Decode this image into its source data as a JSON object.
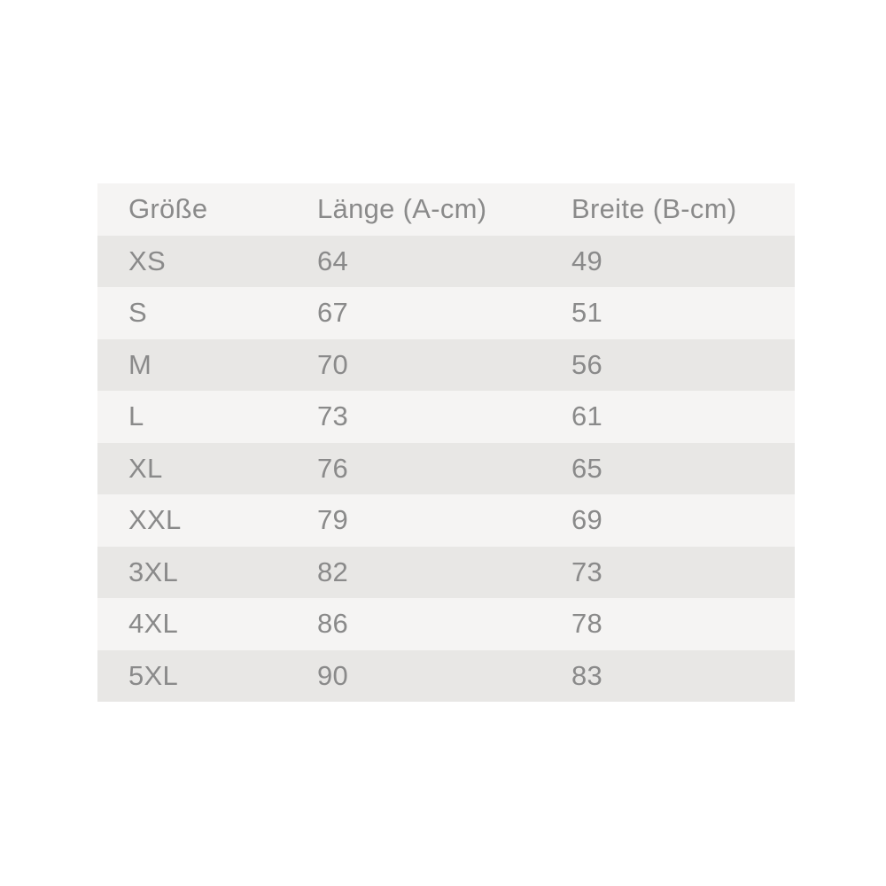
{
  "chart_data": {
    "type": "table",
    "title": "",
    "columns": [
      "Größe",
      "Länge (A-cm)",
      "Breite (B-cm)"
    ],
    "rows": [
      [
        "XS",
        "64",
        "49"
      ],
      [
        "S",
        "67",
        "51"
      ],
      [
        "M",
        "70",
        "56"
      ],
      [
        "L",
        "73",
        "61"
      ],
      [
        "XL",
        "76",
        "65"
      ],
      [
        "XXL",
        "79",
        "69"
      ],
      [
        "3XL",
        "82",
        "73"
      ],
      [
        "4XL",
        "86",
        "78"
      ],
      [
        "5XL",
        "90",
        "83"
      ]
    ]
  },
  "table": {
    "header": {
      "size_label": "Größe",
      "length_label": "Länge (A-cm)",
      "width_label": "Breite (B-cm)"
    },
    "rows": [
      {
        "size": "XS",
        "length": "64",
        "width": "49"
      },
      {
        "size": "S",
        "length": "67",
        "width": "51"
      },
      {
        "size": "M",
        "length": "70",
        "width": "56"
      },
      {
        "size": "L",
        "length": "73",
        "width": "61"
      },
      {
        "size": "XL",
        "length": "76",
        "width": "65"
      },
      {
        "size": "XXL",
        "length": "79",
        "width": "69"
      },
      {
        "size": "3XL",
        "length": "82",
        "width": "73"
      },
      {
        "size": "4XL",
        "length": "86",
        "width": "78"
      },
      {
        "size": "5XL",
        "length": "90",
        "width": "83"
      }
    ]
  },
  "colors": {
    "page_background": "#ffffff",
    "row_light": "#f5f4f3",
    "row_dark": "#e8e7e5",
    "text": "#8a8a8a"
  }
}
